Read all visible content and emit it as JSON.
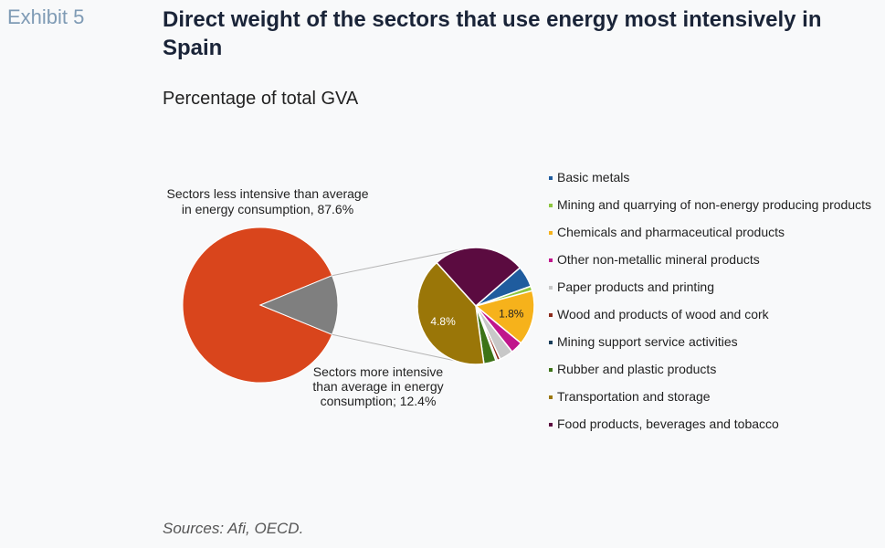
{
  "header": {
    "exhibit": "Exhibit 5",
    "title": "Direct weight of the sectors that use energy most intensively in Spain",
    "subtitle": "Percentage of total GVA"
  },
  "footer": {
    "source": "Sources: Afi, OECD."
  },
  "chart_data": [
    {
      "type": "pie",
      "slices": [
        {
          "label": "Sectors less intensive than average in energy consumption, 87.6%",
          "value": 87.6,
          "color": "#d9451c"
        },
        {
          "label": "Sectors more intensive than average in energy consumption; 12.4%",
          "value": 12.4,
          "color": "#7f7f7f"
        }
      ]
    },
    {
      "type": "pie",
      "legend_position": "right",
      "slices": [
        {
          "label": "Basic metals",
          "value": 0.7,
          "color": "#1f5c9e"
        },
        {
          "label": "Mining and quarrying of non-energy producing products",
          "value": 0.15,
          "color": "#8dc63f"
        },
        {
          "label": "Chemicals and pharmaceutical products",
          "value": 1.8,
          "color": "#f6b21b",
          "data_label": "1.8%"
        },
        {
          "label": "Other non-metallic mineral products",
          "value": 0.4,
          "color": "#c0168c"
        },
        {
          "label": "Paper products and printing",
          "value": 0.45,
          "color": "#c8c8c8"
        },
        {
          "label": "Wood and products of wood and cork",
          "value": 0.1,
          "color": "#8b2a1b"
        },
        {
          "label": "Mining support service activities",
          "value": 0.05,
          "color": "#1a3e5a"
        },
        {
          "label": "Rubber and plastic products",
          "value": 0.4,
          "color": "#3d7317"
        },
        {
          "label": "Transportation and storage",
          "value": 4.8,
          "color": "#9a7608",
          "data_label": "4.8%"
        },
        {
          "label": "Food products, beverages and tobacco",
          "value": 3.0,
          "color": "#5b0b40"
        }
      ]
    }
  ]
}
